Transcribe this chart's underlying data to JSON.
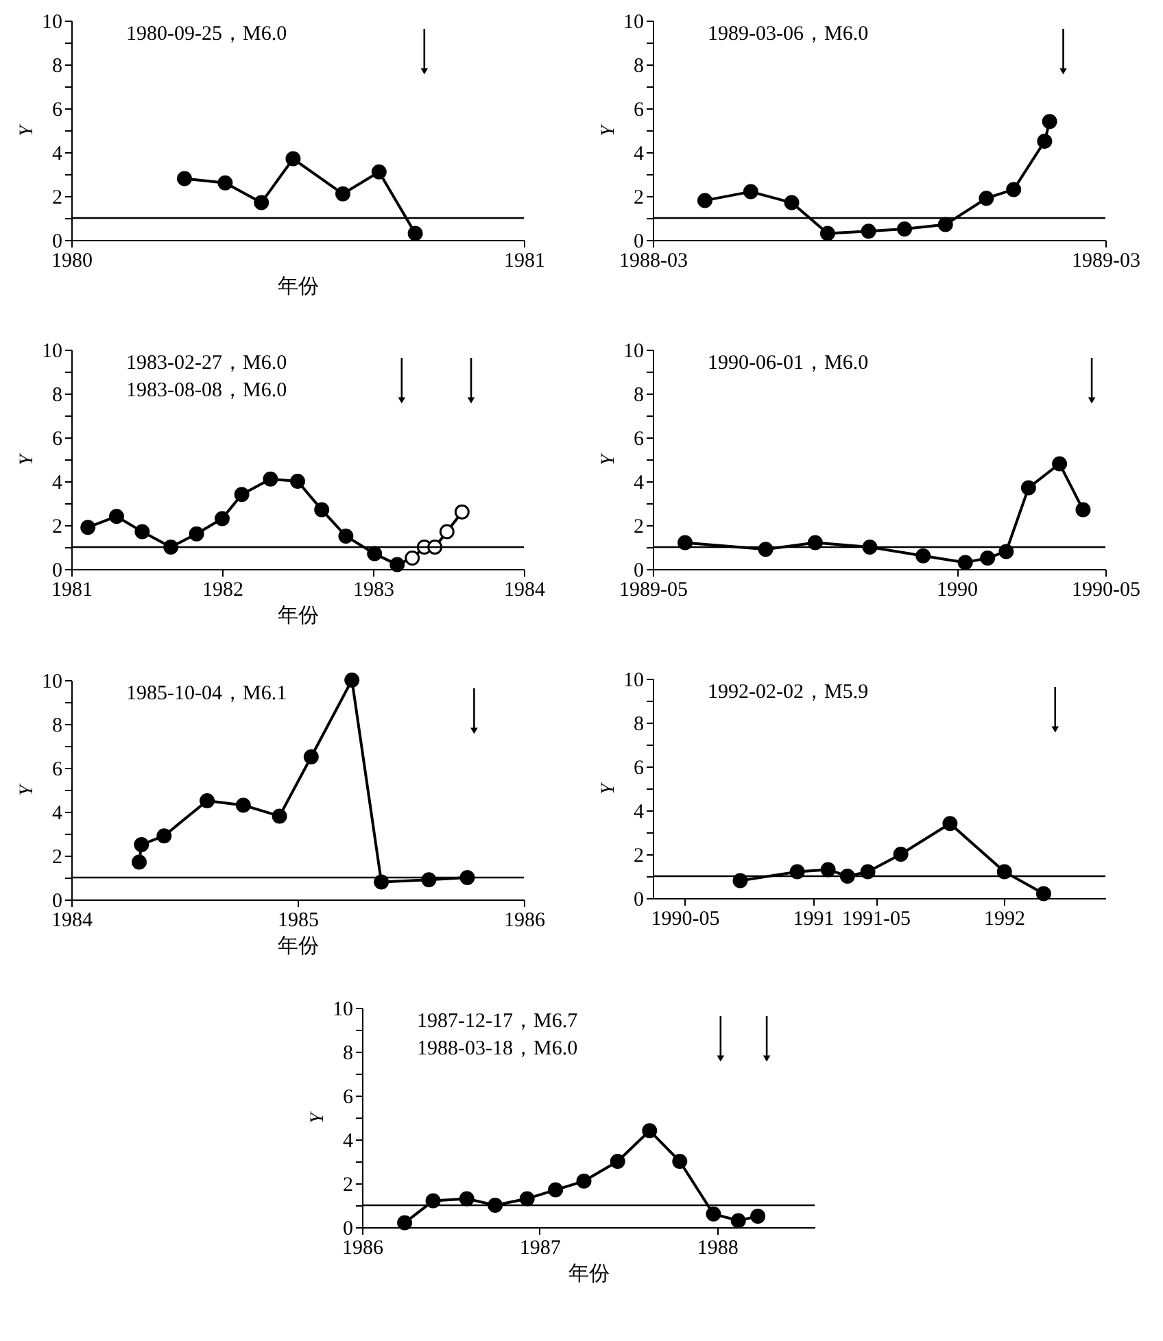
{
  "chart_data": [
    {
      "type": "line",
      "xlabel": "年份",
      "ylabel": "Y",
      "annotations": [
        "1980-09-25，M6.0"
      ],
      "x": [
        1980.25,
        1980.34,
        1980.42,
        1980.49,
        1980.6,
        1980.68,
        1980.76
      ],
      "series": [
        {
          "color": "#000000",
          "values": [
            2.8,
            2.6,
            1.7,
            3.7,
            2.1,
            3.1,
            0.3
          ]
        }
      ],
      "xlim": [
        1980,
        1981
      ],
      "xticks": [
        1980,
        1981
      ],
      "ylim": [
        0,
        10
      ],
      "yticks": [
        0,
        {
          "value": 1,
          "label": null
        },
        2,
        {
          "value": 3,
          "label": null
        },
        4,
        {
          "value": 5,
          "label": null
        },
        6,
        {
          "value": 7,
          "label": null
        },
        8,
        {
          "value": 9,
          "label": null
        },
        10
      ],
      "ref_lines": [
        {
          "axis": "y",
          "value": 1
        },
        {
          "axis": "x",
          "value": 1980.78
        }
      ],
      "grid": false,
      "marker": "circle",
      "line_style": "solid"
    },
    {
      "type": "line",
      "ylabel": "Y",
      "annotations": [
        "1989-03-06，M6.0"
      ],
      "x": [
        "1988-04-12",
        "1988-05-19",
        "1988-06-21",
        "1988-07-20",
        "1988-08-22",
        "1988-09-20",
        "1988-10-23",
        "1988-11-25",
        "1988-12-17",
        "1989-01-11",
        "1989-01-15"
      ],
      "series": [
        {
          "color": "#000000",
          "values": [
            1.8,
            2.2,
            1.7,
            0.3,
            0.4,
            0.5,
            0.7,
            1.9,
            2.3,
            4.5,
            5.4
          ]
        }
      ],
      "xlim": [
        "1988-03",
        "1989-03"
      ],
      "xticks": [
        "1988-03",
        "1989-03"
      ],
      "ylim": [
        0,
        10
      ],
      "yticks": [
        0,
        {
          "value": 1,
          "label": null
        },
        2,
        {
          "value": 3,
          "label": null
        },
        4,
        {
          "value": 5,
          "label": null
        },
        6,
        {
          "value": 7,
          "label": null
        },
        8,
        {
          "value": 9,
          "label": null
        },
        10
      ],
      "ref_lines": [
        {
          "axis": "y",
          "value": 1
        },
        {
          "axis": "x",
          "value": "1989-01-26"
        }
      ],
      "grid": false,
      "marker": "circle",
      "line_style": "solid"
    },
    {
      "type": "line",
      "xlabel": "年份",
      "ylabel": "Y",
      "annotations": [
        "1983-02-27，M6.0",
        "1983-08-08，M6.0"
      ],
      "x": [
        1981.11,
        1981.3,
        1981.47,
        1981.66,
        1981.83,
        1982.0,
        1982.13,
        1982.32,
        1982.5,
        1982.66,
        1982.82,
        1983.01,
        1983.16,
        1983.26,
        1983.34,
        1983.41,
        1983.49,
        1983.59
      ],
      "series": [
        {
          "color": "#000000",
          "colors": [
            "#000000",
            "#000000",
            "#000000",
            "#000000",
            "#000000",
            "#000000",
            "#000000",
            "#000000",
            "#000000",
            "#000000",
            "#000000",
            "#000000",
            "#000000",
            "#ffffff",
            "#ffffff",
            "#ffffff",
            "#ffffff",
            "#ffffff"
          ],
          "values": [
            1.9,
            2.4,
            1.7,
            1.0,
            1.6,
            2.3,
            3.4,
            4.1,
            4.0,
            2.7,
            1.5,
            0.7,
            0.2,
            0.5,
            1.0,
            1.0,
            1.7,
            2.6
          ]
        }
      ],
      "xlim": [
        1981,
        1984
      ],
      "xticks": [
        1981,
        1982,
        1983,
        1984
      ],
      "ylim": [
        0,
        10
      ],
      "yticks": [
        0,
        {
          "value": 1,
          "label": null
        },
        2,
        {
          "value": 3,
          "label": null
        },
        4,
        {
          "value": 5,
          "label": null
        },
        6,
        {
          "value": 7,
          "label": null
        },
        8,
        {
          "value": 9,
          "label": null
        },
        10
      ],
      "ref_lines": [
        {
          "axis": "y",
          "value": 1
        },
        {
          "axis": "x",
          "value": 1983.19
        },
        {
          "axis": "x",
          "value": 1983.65
        }
      ],
      "grid": false,
      "marker": "circle",
      "line_style": "solid"
    },
    {
      "type": "line",
      "ylabel": "Y",
      "annotations": [
        "1990-06-01，M6.0"
      ],
      "x": [
        "1989-05-27",
        "1989-07-31",
        "1989-09-09",
        "1989-10-23",
        "1989-12-05",
        "1990-01-08",
        "1990-01-26",
        "1990-02-10",
        "1990-02-28",
        "1990-03-25",
        "1990-04-13"
      ],
      "series": [
        {
          "color": "#000000",
          "values": [
            1.2,
            0.9,
            1.2,
            1.0,
            0.6,
            0.3,
            0.5,
            0.8,
            3.7,
            4.8,
            2.7
          ]
        }
      ],
      "xlim": [
        "1989-05",
        "1990-05"
      ],
      "xticks": [
        "1989-05",
        "1990",
        "1990-05"
      ],
      "ylim": [
        0,
        10
      ],
      "yticks": [
        0,
        {
          "value": 1,
          "label": null
        },
        2,
        {
          "value": 3,
          "label": null
        },
        4,
        {
          "value": 5,
          "label": null
        },
        6,
        {
          "value": 7,
          "label": null
        },
        8,
        {
          "value": 9,
          "label": null
        },
        10
      ],
      "ref_lines": [
        {
          "axis": "y",
          "value": 1
        },
        {
          "axis": "x",
          "value": "1990-04-20"
        }
      ],
      "grid": false,
      "marker": "circle",
      "line_style": "solid"
    },
    {
      "type": "line",
      "xlabel": "年份",
      "ylabel": "Y",
      "annotations": [
        "1985-10-04，M6.1"
      ],
      "x": [
        1984.3,
        1984.31,
        1984.41,
        1984.6,
        1984.76,
        1984.92,
        1985.06,
        1985.24,
        1985.37,
        1985.58,
        1985.75
      ],
      "series": [
        {
          "color": "#000000",
          "values": [
            1.7,
            2.5,
            2.9,
            4.5,
            4.3,
            3.8,
            6.5,
            10.0,
            0.8,
            0.9,
            1.0
          ]
        }
      ],
      "xlim": [
        1984,
        1986
      ],
      "xticks": [
        1984,
        1985,
        1986
      ],
      "ylim": [
        0,
        10
      ],
      "yticks": [
        0,
        {
          "value": 1,
          "label": null
        },
        2,
        {
          "value": 3,
          "label": null
        },
        4,
        {
          "value": 5,
          "label": null
        },
        6,
        {
          "value": 7,
          "label": null
        },
        8,
        {
          "value": 9,
          "label": null
        },
        10
      ],
      "ref_lines": [
        {
          "axis": "y",
          "value": 1
        },
        {
          "axis": "x",
          "value": 1985.78
        }
      ],
      "grid": false,
      "marker": "circle",
      "line_style": "solid"
    },
    {
      "type": "line",
      "ylabel": "Y",
      "annotations": [
        "1992-02-02，M5.9"
      ],
      "x": [
        "1990-08-15",
        "1990-12-02",
        "1991-01-30",
        "1991-03-08",
        "1991-04-16",
        "1991-06-18",
        "1991-09-20",
        "1992-01-02",
        "1992-03-17"
      ],
      "series": [
        {
          "color": "#000000",
          "values": [
            0.8,
            1.2,
            1.3,
            1.0,
            1.2,
            2.0,
            3.4,
            1.2,
            0.2
          ]
        }
      ],
      "xlim": [
        "1990-03-01",
        "1992-07-13"
      ],
      "xticks": [
        "1990-05",
        "1991",
        "1991-05",
        "1992"
      ],
      "ylim": [
        0,
        10
      ],
      "yticks": [
        0,
        {
          "value": 1,
          "label": null
        },
        2,
        {
          "value": 3,
          "label": null
        },
        4,
        {
          "value": 5,
          "label": null
        },
        6,
        {
          "value": 7,
          "label": null
        },
        8,
        {
          "value": 9,
          "label": null
        },
        10
      ],
      "ref_lines": [
        {
          "axis": "y",
          "value": 1
        },
        {
          "axis": "x",
          "value": "1992-04-08"
        }
      ],
      "grid": false,
      "marker": "circle",
      "line_style": "solid"
    },
    {
      "type": "line",
      "xlabel": "年份",
      "ylabel": "Y",
      "annotations": [
        "1987-12-17，M6.7",
        "1988-03-18，M6.0"
      ],
      "x": [
        1986.24,
        1986.4,
        1986.59,
        1986.75,
        1986.93,
        1987.09,
        1987.25,
        1987.44,
        1987.62,
        1987.79,
        1987.98,
        1988.12,
        1988.23
      ],
      "series": [
        {
          "color": "#000000",
          "values": [
            0.2,
            1.2,
            1.3,
            1.0,
            1.3,
            1.7,
            2.1,
            3.0,
            4.4,
            3.0,
            0.6,
            0.3,
            0.5
          ]
        }
      ],
      "xlim": [
        1986,
        1988.55
      ],
      "xticks": [
        1986,
        1987,
        1988
      ],
      "ylim": [
        0,
        10
      ],
      "yticks": [
        0,
        {
          "value": 1,
          "label": null
        },
        2,
        {
          "value": 3,
          "label": null
        },
        4,
        {
          "value": 5,
          "label": null
        },
        6,
        {
          "value": 7,
          "label": null
        },
        8,
        {
          "value": 9,
          "label": null
        },
        10
      ],
      "ref_lines": [
        {
          "axis": "y",
          "value": 1
        },
        {
          "axis": "x",
          "value": 1988.02
        },
        {
          "axis": "x",
          "value": 1988.28
        }
      ],
      "grid": false,
      "marker": "circle",
      "line_style": "solid"
    }
  ]
}
